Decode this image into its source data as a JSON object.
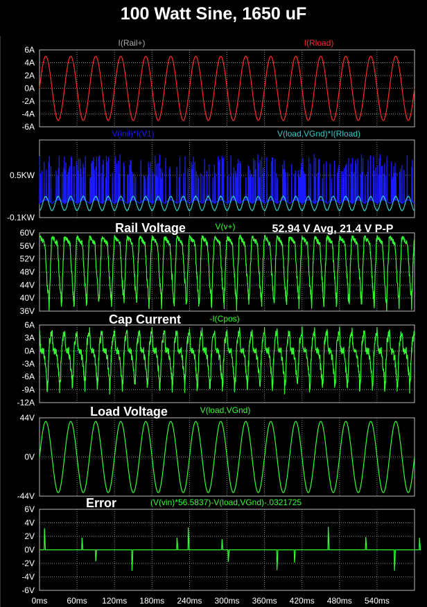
{
  "title": "100 Watt Sine, 1650 uF",
  "colors": {
    "background": "#000000",
    "grid": "#8a8a8a",
    "frame": "#bdbdbd",
    "red": "#ff2a2a",
    "blue": "#1a1aff",
    "cyan": "#33cccc",
    "green": "#33ff33",
    "gray_label": "#aaaaaa"
  },
  "x_axis": {
    "unit": "ms",
    "range": [
      0,
      600
    ],
    "ticks": [
      "0ms",
      "60ms",
      "120ms",
      "180ms",
      "240ms",
      "300ms",
      "360ms",
      "420ms",
      "480ms",
      "540ms"
    ]
  },
  "chart_data": [
    {
      "type": "line",
      "ylim": [
        -6,
        6
      ],
      "yticks": [
        "6A",
        "4A",
        "2A",
        "0A",
        "-2A",
        "-4A",
        "-6A"
      ],
      "series": [
        {
          "name": "I(Rail+)",
          "color": "#aaaaaa",
          "shape": "none"
        },
        {
          "name": "I(Rload)",
          "color": "#ff2a2a",
          "shape": "sine",
          "amplitude": 5,
          "frequency_hz": 25,
          "offset": 0
        }
      ]
    },
    {
      "type": "line",
      "ylim": [
        -0.1,
        1.0
      ],
      "yticks": [
        "0.5KW",
        "-0.1KW"
      ],
      "series": [
        {
          "name": "V(inil)*I(V1)",
          "color": "#1a1aff",
          "shape": "spikes",
          "base": 0.1,
          "peak_min": 0.45,
          "peak_max": 0.8
        },
        {
          "name": "V(load,VGnd)*I(Rload)",
          "color": "#33cccc",
          "shape": "sin2",
          "peak": 0.2,
          "frequency_hz": 25
        }
      ]
    },
    {
      "type": "line",
      "title": "Rail Voltage",
      "annotation": "52.94 V Avg, 21.4 V P-P",
      "ylim": [
        36,
        60
      ],
      "yticks": [
        "60V",
        "56V",
        "52V",
        "48V",
        "44V",
        "40V",
        "36V"
      ],
      "series": [
        {
          "name": "V(v+)",
          "color": "#33ff33",
          "shape": "rail",
          "high": 59,
          "low": 38
        }
      ]
    },
    {
      "type": "line",
      "title": "Cap Current",
      "ylim": [
        -12,
        6
      ],
      "yticks": [
        "6A",
        "3A",
        "0A",
        "-3A",
        "-6A",
        "-9A",
        "-12A"
      ],
      "series": [
        {
          "name": "-I(Cpos)",
          "color": "#33ff33",
          "shape": "capcurrent",
          "pos_peak": 5,
          "neg_peak": -9
        }
      ]
    },
    {
      "type": "line",
      "title": "Load Voltage",
      "ylim": [
        -44,
        44
      ],
      "yticks": [
        "44V",
        "0V",
        "-44V"
      ],
      "series": [
        {
          "name": "V(load,VGnd)",
          "color": "#33ff33",
          "shape": "sine",
          "amplitude": 40,
          "frequency_hz": 25,
          "offset": 0
        }
      ]
    },
    {
      "type": "line",
      "title": "Error",
      "ylim": [
        -6,
        6
      ],
      "yticks": [
        "6V",
        "4V",
        "2V",
        "0V",
        "-2V",
        "-4V",
        "-6V"
      ],
      "series": [
        {
          "name": "(V(vin)*56.5837)-V(load,VGnd)-.0321725",
          "color": "#33ff33",
          "shape": "pulses",
          "pulses": [
            [
              8,
              3.2
            ],
            [
              68,
              1.8
            ],
            [
              90,
              -1.7
            ],
            [
              148,
              -3.1
            ],
            [
              220,
              1.8
            ],
            [
              238,
              3.3
            ],
            [
              292,
              1.6
            ],
            [
              302,
              -1.8
            ],
            [
              380,
              -3.0
            ],
            [
              408,
              -1.9
            ],
            [
              462,
              3.4
            ],
            [
              522,
              1.9
            ],
            [
              568,
              -3.1
            ],
            [
              608,
              1.8
            ]
          ]
        }
      ]
    }
  ]
}
